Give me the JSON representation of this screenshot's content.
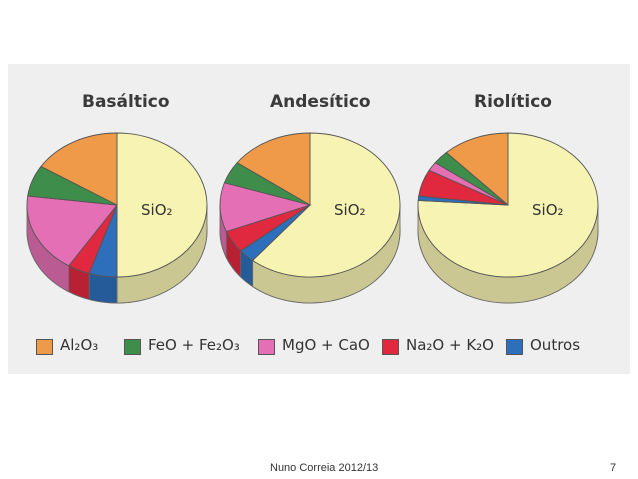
{
  "chart_data": {
    "type": "pie",
    "style": "3d",
    "legend_position": "bottom",
    "center_label": "SiO₂",
    "categories": [
      "SiO₂",
      "Al₂O₃",
      "FeO + Fe₂O₃",
      "MgO + CaO",
      "Na₂O + K₂O",
      "Outros"
    ],
    "colors": {
      "SiO₂": "#f7f3b2",
      "Al₂O₃": "#ef9a48",
      "FeO + Fe₂O₃": "#3f8d4a",
      "MgO + CaO": "#e46fb4",
      "Na₂O + K₂O": "#e0283f",
      "Outros": "#2d6fbb"
    },
    "charts": [
      {
        "title": "Basáltico",
        "values": {
          "SiO₂": 50,
          "Al₂O₃": 16,
          "FeO + Fe₂O₃": 7,
          "MgO + CaO": 18,
          "Na₂O + K₂O": 4,
          "Outros": 5
        }
      },
      {
        "title": "Andesítico",
        "values": {
          "SiO₂": 61,
          "Al₂O₃": 15,
          "FeO + Fe₂O₃": 5,
          "MgO + CaO": 11,
          "Na₂O + K₂O": 5,
          "Outros": 3
        }
      },
      {
        "title": "Riolítico",
        "values": {
          "SiO₂": 76,
          "Al₂O₃": 12,
          "FeO + Fe₂O₃": 3,
          "MgO + CaO": 2,
          "Na₂O + K₂O": 6,
          "Outros": 1
        }
      }
    ]
  },
  "footer": {
    "author": "Nuno Correia 2012/13",
    "page": "7"
  }
}
